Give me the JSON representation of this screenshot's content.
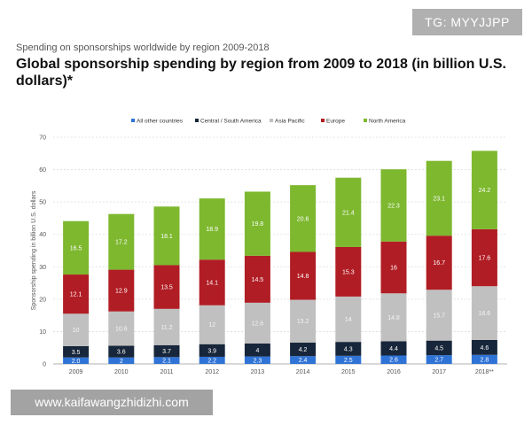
{
  "watermark": "TG: MYYJJPP",
  "url_badge": "www.kaifawangzhidizhi.com",
  "chart_data": {
    "type": "bar",
    "stacked": true,
    "subtitle": "Spending on sponsorships worldwide by region 2009-2018",
    "title": "Global sponsorship spending by region from 2009 to 2018 (in billion U.S. dollars)*",
    "xlabel": "",
    "ylabel": "Sponsorship spending in billion U.S. dollars",
    "ylim": [
      0,
      70
    ],
    "yticks": [
      0,
      10,
      20,
      30,
      40,
      50,
      60,
      70
    ],
    "grid": true,
    "legend_position": "top",
    "categories": [
      "2009",
      "2010",
      "2011",
      "2012",
      "2013",
      "2014",
      "2015",
      "2016",
      "2017",
      "2018**"
    ],
    "series": [
      {
        "name": "All other countries",
        "color": "#2f73d6",
        "values": [
          2.0,
          2.0,
          2.1,
          2.2,
          2.3,
          2.4,
          2.5,
          2.6,
          2.7,
          2.8
        ],
        "labels": [
          "2.0",
          "2",
          "2.1",
          "2.2",
          "2.3",
          "2.4",
          "2.5",
          "2.6",
          "2.7",
          "2.8"
        ]
      },
      {
        "name": "Central / South America",
        "color": "#17263a",
        "values": [
          3.5,
          3.6,
          3.7,
          3.9,
          4.0,
          4.2,
          4.3,
          4.4,
          4.5,
          4.6
        ],
        "labels": [
          "3.5",
          "3.6",
          "3.7",
          "3.9",
          "4",
          "4.2",
          "4.3",
          "4.4",
          "4.5",
          "4.6"
        ]
      },
      {
        "name": "Asia Pacific",
        "color": "#c0c0c0",
        "values": [
          10.0,
          10.6,
          11.2,
          12.0,
          12.6,
          13.2,
          14.0,
          14.8,
          15.7,
          16.6
        ],
        "labels": [
          "10",
          "10.6",
          "11.2",
          "12",
          "12.6",
          "13.2",
          "14",
          "14.8",
          "15.7",
          "16.6"
        ]
      },
      {
        "name": "Europe",
        "color": "#b11d24",
        "values": [
          12.1,
          12.9,
          13.5,
          14.1,
          14.5,
          14.8,
          15.3,
          16.0,
          16.7,
          17.6
        ],
        "labels": [
          "12.1",
          "12.9",
          "13.5",
          "14.1",
          "14.5",
          "14.8",
          "15.3",
          "16",
          "16.7",
          "17.6"
        ]
      },
      {
        "name": "North America",
        "color": "#7db82f",
        "values": [
          16.5,
          17.2,
          18.1,
          18.9,
          19.8,
          20.6,
          21.4,
          22.3,
          23.1,
          24.2
        ],
        "labels": [
          "16.5",
          "17.2",
          "18.1",
          "18.9",
          "19.8",
          "20.6",
          "21.4",
          "22.3",
          "23.1",
          "24.2"
        ]
      }
    ]
  }
}
